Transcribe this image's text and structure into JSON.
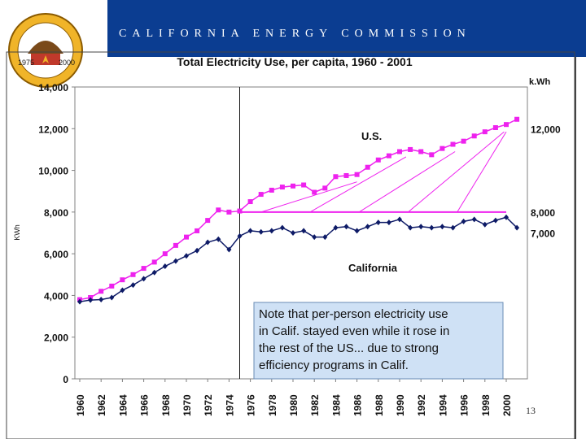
{
  "header": {
    "org_title": "CALIFORNIA ENERGY COMMISSION",
    "bar_color": "#0b3d91"
  },
  "seal": {
    "lettering": "State of California Energy Commission",
    "year_left": "1975",
    "year_right": "2000"
  },
  "page_number": "13",
  "chart_data": {
    "type": "line",
    "title": "Total Electricity Use,  per capita, 1960 - 2001",
    "ylabel": "KWh",
    "right_axis_unit": "k.Wh",
    "ylim": [
      0,
      14000
    ],
    "xlim": [
      1960,
      2001
    ],
    "y_ticks": [
      {
        "value": 0,
        "label": "0"
      },
      {
        "value": 2000,
        "label": "2,000"
      },
      {
        "value": 4000,
        "label": "4,000"
      },
      {
        "value": 6000,
        "label": "6,000"
      },
      {
        "value": 8000,
        "label": "8,000"
      },
      {
        "value": 10000,
        "label": "10,000"
      },
      {
        "value": 12000,
        "label": "12,000"
      },
      {
        "value": 14000,
        "label": "14,000"
      }
    ],
    "x_ticks": [
      "1960",
      "1962",
      "1964",
      "1966",
      "1968",
      "1970",
      "1972",
      "1974",
      "1976",
      "1978",
      "1980",
      "1982",
      "1984",
      "1986",
      "1988",
      "1990",
      "1992",
      "1994",
      "1996",
      "1998",
      "2000"
    ],
    "right_labels": [
      {
        "value": 12000,
        "label": "12,000"
      },
      {
        "value": 8000,
        "label": "8,000"
      },
      {
        "value": 7000,
        "label": "7,000"
      }
    ],
    "x": [
      1960,
      1961,
      1962,
      1963,
      1964,
      1965,
      1966,
      1967,
      1968,
      1969,
      1970,
      1971,
      1972,
      1973,
      1974,
      1975,
      1976,
      1977,
      1978,
      1979,
      1980,
      1981,
      1982,
      1983,
      1984,
      1985,
      1986,
      1987,
      1988,
      1989,
      1990,
      1991,
      1992,
      1993,
      1994,
      1995,
      1996,
      1997,
      1998,
      1999,
      2000,
      2001
    ],
    "series": [
      {
        "name": "U.S.",
        "color": "#ee22ee",
        "marker": "square",
        "values": [
          3800,
          3900,
          4200,
          4450,
          4750,
          5000,
          5300,
          5600,
          6000,
          6400,
          6800,
          7100,
          7600,
          8100,
          8000,
          8050,
          8500,
          8850,
          9050,
          9200,
          9250,
          9300,
          8950,
          9150,
          9700,
          9750,
          9800,
          10150,
          10500,
          10700,
          10900,
          11000,
          10900,
          10750,
          11050,
          11250,
          11400,
          11650,
          11850,
          12050,
          12200,
          12450
        ]
      },
      {
        "name": "California",
        "color": "#0d1a66",
        "marker": "diamond",
        "values": [
          3700,
          3780,
          3800,
          3900,
          4250,
          4500,
          4800,
          5100,
          5400,
          5650,
          5900,
          6150,
          6550,
          6700,
          6200,
          6850,
          7100,
          7050,
          7100,
          7250,
          7000,
          7100,
          6800,
          6800,
          7250,
          7300,
          7100,
          7300,
          7500,
          7500,
          7650,
          7250,
          7300,
          7250,
          7300,
          7250,
          7550,
          7650,
          7400,
          7600,
          7750,
          7250
        ]
      }
    ],
    "reference_line": {
      "value": 8000,
      "from": 1975,
      "to": 2000,
      "color": "#ee22ee"
    },
    "vertical_marker": {
      "x": 1975
    },
    "savings_hatch": {
      "from": 1977,
      "to": 2000,
      "color": "#ee22ee"
    },
    "series_labels": [
      {
        "series": "U.S.",
        "text": "U.S."
      },
      {
        "series": "California",
        "text": "California"
      }
    ],
    "annotation": {
      "text_lines": [
        "Note that per-person electricity use",
        "in Calif. stayed even while it rose in",
        "the rest of the US... due to strong",
        "efficiency programs in Calif."
      ],
      "box_fill": "#cfe1f5"
    }
  }
}
